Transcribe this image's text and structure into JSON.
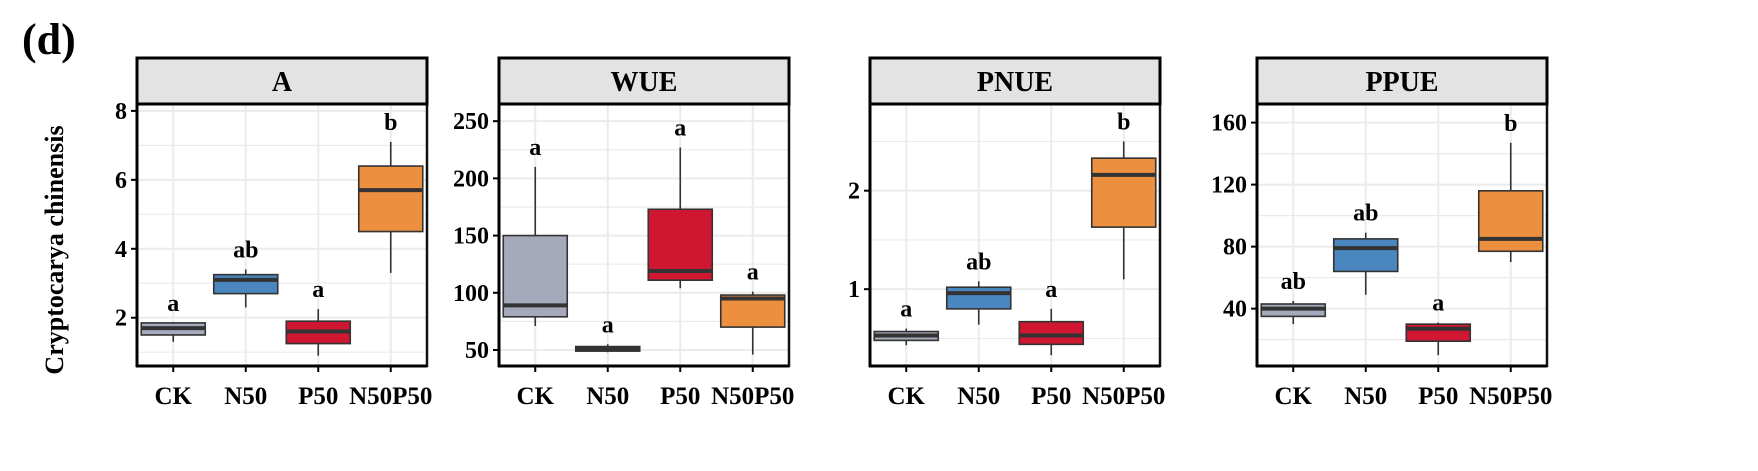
{
  "panel_label": "(d)",
  "y_title": "Cryptocarya chinensis",
  "colors": {
    "CK": "#a4a9bc",
    "N50": "#4a86bf",
    "P50": "#cf1731",
    "N50P50": "#ec8f3f",
    "header_fill": "#e3e3e3",
    "grid": "#ebebeb",
    "frame": "#111111",
    "median": "#333333"
  },
  "chart_data": [
    {
      "type": "box",
      "title": "A",
      "categories": [
        "CK",
        "N50",
        "P50",
        "N50P50"
      ],
      "ylim": [
        0.6,
        8.2
      ],
      "yticks": [
        2,
        4,
        6,
        8
      ],
      "boxes": [
        {
          "group": "CK",
          "min": 1.3,
          "q1": 1.5,
          "median": 1.7,
          "q3": 1.85,
          "max": 1.85,
          "letter": "a"
        },
        {
          "group": "N50",
          "min": 2.3,
          "q1": 2.7,
          "median": 3.1,
          "q3": 3.25,
          "max": 3.4,
          "letter": "ab"
        },
        {
          "group": "P50",
          "min": 0.9,
          "q1": 1.25,
          "median": 1.6,
          "q3": 1.9,
          "max": 2.25,
          "letter": "a"
        },
        {
          "group": "N50P50",
          "min": 3.3,
          "q1": 4.5,
          "median": 5.7,
          "q3": 6.4,
          "max": 7.1,
          "letter": "b"
        }
      ]
    },
    {
      "type": "box",
      "title": "WUE",
      "categories": [
        "CK",
        "N50",
        "P50",
        "N50P50"
      ],
      "ylim": [
        36,
        265
      ],
      "yticks": [
        50,
        100,
        150,
        200,
        250
      ],
      "boxes": [
        {
          "group": "CK",
          "min": 71,
          "q1": 79,
          "median": 89,
          "q3": 150,
          "max": 210,
          "letter": "a"
        },
        {
          "group": "N50",
          "min": 48,
          "q1": 49,
          "median": 51,
          "q3": 53,
          "max": 55,
          "letter": "a"
        },
        {
          "group": "P50",
          "min": 104,
          "q1": 111,
          "median": 119,
          "q3": 173,
          "max": 227,
          "letter": "a"
        },
        {
          "group": "N50P50",
          "min": 46,
          "q1": 70,
          "median": 95,
          "q3": 98,
          "max": 101,
          "letter": "a"
        }
      ]
    },
    {
      "type": "box",
      "title": "PNUE",
      "categories": [
        "CK",
        "N50",
        "P50",
        "N50P50"
      ],
      "ylim": [
        0.22,
        2.88
      ],
      "yticks": [
        1,
        2
      ],
      "boxes": [
        {
          "group": "CK",
          "min": 0.43,
          "q1": 0.48,
          "median": 0.53,
          "q3": 0.57,
          "max": 0.6,
          "letter": "a"
        },
        {
          "group": "N50",
          "min": 0.64,
          "q1": 0.8,
          "median": 0.96,
          "q3": 1.02,
          "max": 1.08,
          "letter": "ab"
        },
        {
          "group": "P50",
          "min": 0.33,
          "q1": 0.44,
          "median": 0.53,
          "q3": 0.67,
          "max": 0.8,
          "letter": "a"
        },
        {
          "group": "N50P50",
          "min": 1.1,
          "q1": 1.63,
          "median": 2.16,
          "q3": 2.33,
          "max": 2.5,
          "letter": "b"
        }
      ]
    },
    {
      "type": "box",
      "title": "PPUE",
      "categories": [
        "CK",
        "N50",
        "P50",
        "N50P50"
      ],
      "ylim": [
        3,
        172
      ],
      "yticks": [
        40,
        80,
        120,
        160
      ],
      "boxes": [
        {
          "group": "CK",
          "min": 30,
          "q1": 35,
          "median": 40,
          "q3": 43,
          "max": 45,
          "letter": "ab"
        },
        {
          "group": "N50",
          "min": 49,
          "q1": 64,
          "median": 79,
          "q3": 85,
          "max": 89,
          "letter": "ab"
        },
        {
          "group": "P50",
          "min": 10,
          "q1": 19,
          "median": 27,
          "q3": 30,
          "max": 31,
          "letter": "a"
        },
        {
          "group": "N50P50",
          "min": 70,
          "q1": 77,
          "median": 85,
          "q3": 116,
          "max": 147,
          "letter": "b"
        }
      ]
    }
  ]
}
